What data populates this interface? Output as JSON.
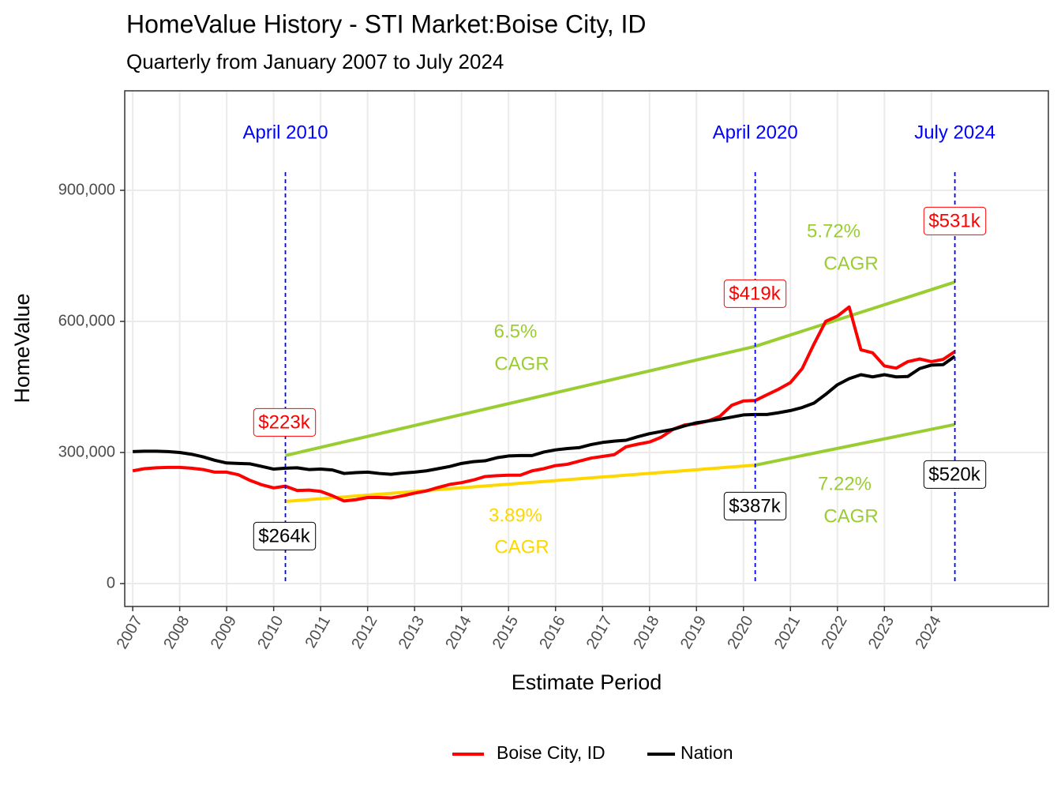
{
  "chart_data": {
    "type": "line",
    "title": "HomeValue History - STI Market:Boise City, ID",
    "subtitle": "Quarterly from January 2007 to July 2024",
    "x_label": "Estimate Period",
    "y_label": "HomeValue",
    "x": [
      2007,
      2007.25,
      2007.5,
      2007.75,
      2008,
      2008.25,
      2008.5,
      2008.75,
      2009,
      2009.25,
      2009.5,
      2009.75,
      2010,
      2010.25,
      2010.5,
      2010.75,
      2011,
      2011.25,
      2011.5,
      2011.75,
      2012,
      2012.25,
      2012.5,
      2012.75,
      2013,
      2013.25,
      2013.5,
      2013.75,
      2014,
      2014.25,
      2014.5,
      2014.75,
      2015,
      2015.25,
      2015.5,
      2015.75,
      2016,
      2016.25,
      2016.5,
      2016.75,
      2017,
      2017.25,
      2017.5,
      2017.75,
      2018,
      2018.25,
      2018.5,
      2018.75,
      2019,
      2019.25,
      2019.5,
      2019.75,
      2020,
      2020.25,
      2020.5,
      2020.75,
      2021,
      2021.25,
      2021.5,
      2021.75,
      2022,
      2022.25,
      2022.5,
      2022.75,
      2023,
      2023.25,
      2023.5,
      2023.75,
      2024,
      2024.25,
      2024.5
    ],
    "series": [
      {
        "name": "Boise City, ID",
        "color": "#ff0000",
        "values": [
          258000,
          263000,
          265000,
          266000,
          266000,
          264000,
          261000,
          255000,
          255000,
          249000,
          236000,
          226000,
          219000,
          223000,
          213000,
          214000,
          211000,
          201000,
          189000,
          192000,
          197000,
          197000,
          196000,
          201000,
          207000,
          212000,
          220000,
          227000,
          231000,
          237000,
          245000,
          247000,
          248000,
          248000,
          258000,
          263000,
          270000,
          273000,
          280000,
          287000,
          291000,
          295000,
          313000,
          319000,
          324000,
          335000,
          353000,
          363000,
          366000,
          372000,
          383000,
          408000,
          418000,
          419000,
          432000,
          445000,
          460000,
          492000,
          548000,
          600000,
          612000,
          633000,
          535000,
          528000,
          498000,
          493000,
          508000,
          514000,
          508000,
          513000,
          531000
        ],
        "value_labels": [
          null,
          null,
          null,
          null,
          null,
          null,
          null,
          null,
          null,
          null,
          null,
          null,
          null,
          "$223k",
          null,
          null,
          null,
          null,
          null,
          null,
          null,
          null,
          null,
          null,
          null,
          null,
          null,
          null,
          null,
          null,
          null,
          null,
          null,
          null,
          null,
          null,
          null,
          null,
          null,
          null,
          null,
          null,
          null,
          null,
          null,
          null,
          null,
          null,
          null,
          null,
          null,
          null,
          null,
          "$419k",
          null,
          null,
          null,
          null,
          null,
          null,
          null,
          null,
          null,
          null,
          null,
          null,
          null,
          null,
          null,
          null,
          "$531k"
        ]
      },
      {
        "name": "Nation",
        "color": "#000000",
        "values": [
          302000,
          303000,
          303000,
          302000,
          300000,
          296000,
          290000,
          282000,
          276000,
          275000,
          274000,
          268000,
          262000,
          264000,
          265000,
          261000,
          262000,
          260000,
          252000,
          254000,
          255000,
          252000,
          250000,
          253000,
          255000,
          258000,
          263000,
          268000,
          275000,
          279000,
          281000,
          288000,
          292000,
          293000,
          293000,
          301000,
          306000,
          309000,
          311000,
          318000,
          323000,
          326000,
          328000,
          336000,
          343000,
          348000,
          353000,
          361000,
          368000,
          372000,
          376000,
          381000,
          386000,
          387000,
          387000,
          391000,
          396000,
          403000,
          413000,
          433000,
          455000,
          469000,
          478000,
          473000,
          478000,
          473000,
          474000,
          492000,
          500000,
          501000,
          520000
        ],
        "value_labels": [
          null,
          null,
          null,
          null,
          null,
          null,
          null,
          null,
          null,
          null,
          null,
          null,
          null,
          "$264k",
          null,
          null,
          null,
          null,
          null,
          null,
          null,
          null,
          null,
          null,
          null,
          null,
          null,
          null,
          null,
          null,
          null,
          null,
          null,
          null,
          null,
          null,
          null,
          null,
          null,
          null,
          null,
          null,
          null,
          null,
          null,
          null,
          null,
          null,
          null,
          null,
          null,
          null,
          null,
          "$387k",
          null,
          null,
          null,
          null,
          null,
          null,
          null,
          null,
          null,
          null,
          null,
          null,
          null,
          null,
          null,
          null,
          "$520k"
        ]
      }
    ],
    "trend_lines": [
      {
        "color": "#9acd32",
        "x": [
          2010.25,
          2020.25,
          2024.5
        ],
        "values": [
          293000,
          543000,
          690000
        ]
      },
      {
        "color": "#ffd700",
        "x": [
          2010.25,
          2020.25
        ],
        "values": [
          188000,
          271000
        ]
      },
      {
        "color": "#9acd32",
        "x": [
          2020.25,
          2024.5
        ],
        "values": [
          271000,
          364000
        ]
      }
    ],
    "annotations": [
      {
        "lines": [
          "6.5%",
          "CAGR"
        ],
        "color": "#9acd32"
      },
      {
        "lines": [
          "3.89%",
          "CAGR"
        ],
        "color": "#ffd700"
      },
      {
        "lines": [
          "5.72%",
          "CAGR"
        ],
        "color": "#9acd32"
      },
      {
        "lines": [
          "7.22%",
          "CAGR"
        ],
        "color": "#9acd32"
      }
    ],
    "vlines": [
      {
        "x": 2010.25,
        "label": "April 2010",
        "color": "#0000ff"
      },
      {
        "x": 2020.25,
        "label": "April 2020",
        "color": "#0000ff"
      },
      {
        "x": 2024.5,
        "label": "July 2024",
        "color": "#0000ff"
      }
    ],
    "xlim": [
      2006.83,
      2026.49
    ],
    "xticks": [
      2007,
      2008,
      2009,
      2010,
      2011,
      2012,
      2013,
      2014,
      2015,
      2016,
      2017,
      2018,
      2019,
      2020,
      2021,
      2022,
      2023,
      2024
    ],
    "ylim": [
      -52400,
      1127700
    ],
    "yticks": [
      0,
      {
        "value": 300000,
        "label": "300,000"
      },
      {
        "value": 600000,
        "label": "600,000"
      },
      {
        "value": 900000,
        "label": "900,000"
      }
    ],
    "grid": true,
    "legend_position": "bottom"
  }
}
